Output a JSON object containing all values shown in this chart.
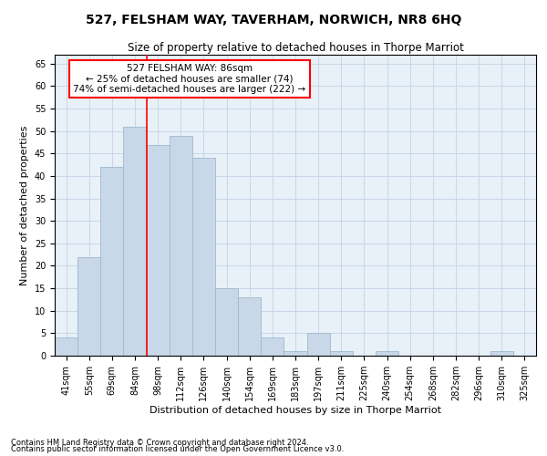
{
  "title": "527, FELSHAM WAY, TAVERHAM, NORWICH, NR8 6HQ",
  "subtitle": "Size of property relative to detached houses in Thorpe Marriot",
  "xlabel": "Distribution of detached houses by size in Thorpe Marriot",
  "ylabel": "Number of detached properties",
  "categories": [
    "41sqm",
    "55sqm",
    "69sqm",
    "84sqm",
    "98sqm",
    "112sqm",
    "126sqm",
    "140sqm",
    "154sqm",
    "169sqm",
    "183sqm",
    "197sqm",
    "211sqm",
    "225sqm",
    "240sqm",
    "254sqm",
    "268sqm",
    "282sqm",
    "296sqm",
    "310sqm",
    "325sqm"
  ],
  "values": [
    4,
    22,
    42,
    51,
    47,
    49,
    44,
    15,
    13,
    4,
    1,
    5,
    1,
    0,
    1,
    0,
    0,
    0,
    0,
    1,
    0
  ],
  "bar_color": "#c8d8e8",
  "bar_edge_color": "#a0b8cc",
  "vline_x": 3.5,
  "vline_color": "red",
  "annotation_text": "527 FELSHAM WAY: 86sqm\n← 25% of detached houses are smaller (74)\n74% of semi-detached houses are larger (222) →",
  "annotation_box_color": "white",
  "annotation_box_edge_color": "red",
  "ylim": [
    0,
    67
  ],
  "yticks": [
    0,
    5,
    10,
    15,
    20,
    25,
    30,
    35,
    40,
    45,
    50,
    55,
    60,
    65
  ],
  "grid_color": "#c8d8e8",
  "bg_color": "#e8f0f8",
  "footer1": "Contains HM Land Registry data © Crown copyright and database right 2024.",
  "footer2": "Contains public sector information licensed under the Open Government Licence v3.0.",
  "title_fontsize": 10,
  "subtitle_fontsize": 8.5,
  "xlabel_fontsize": 8,
  "ylabel_fontsize": 8,
  "tick_fontsize": 7,
  "annotation_fontsize": 7.5,
  "footer_fontsize": 6
}
